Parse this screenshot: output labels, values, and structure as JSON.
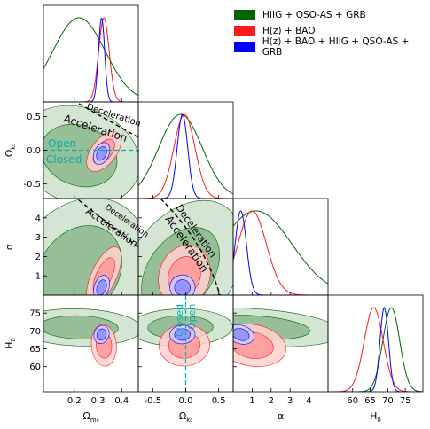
{
  "chart_data": {
    "type": "triangle",
    "parameters": [
      {
        "key": "Om",
        "label": "Ω",
        "sub": "m₀",
        "range": [
          0.07,
          0.47
        ],
        "ticks": [
          0.2,
          0.3,
          0.4
        ]
      },
      {
        "key": "Ok",
        "label": "Ω",
        "sub": "k₀",
        "range": [
          -0.72,
          0.72
        ],
        "ticks": [
          -0.5,
          0.0,
          0.5
        ]
      },
      {
        "key": "alpha",
        "label": "α",
        "sub": "",
        "range": [
          0.0,
          5.0
        ],
        "ticks": [
          1,
          2,
          3,
          4
        ]
      },
      {
        "key": "H0",
        "label": "H",
        "sub": "0",
        "range": [
          53,
          80
        ],
        "ticks": [
          60,
          65,
          70,
          75
        ]
      }
    ],
    "series": [
      {
        "name": "HIIG + QSO-AS + GRB",
        "color": "#006400",
        "mean": {
          "Om": 0.22,
          "Ok": -0.08,
          "alpha": 1.2,
          "H0": 71.0
        },
        "sigma": {
          "Om": 0.11,
          "Ok": 0.33,
          "alpha": 1.9,
          "H0": 2.4
        }
      },
      {
        "name": "H(z) + BAO",
        "color": "#ff1a1a",
        "mean": {
          "Om": 0.325,
          "Ok": -0.02,
          "alpha": 1.0,
          "H0": 66.0
        },
        "sigma": {
          "Om": 0.022,
          "Ok": 0.16,
          "alpha": 0.75,
          "H0": 2.7
        }
      },
      {
        "name": "H(z) + BAO + HIIG + QSO-AS + GRB",
        "color": "#0000ff",
        "mean": {
          "Om": 0.315,
          "Ok": -0.05,
          "alpha": 0.4,
          "H0": 69.0
        },
        "sigma": {
          "Om": 0.013,
          "Ok": 0.08,
          "alpha": 0.3,
          "H0": 1.2
        }
      }
    ],
    "annotations": {
      "deceleration": "Deceleration",
      "acceleration": "Acceleration",
      "open": "Open",
      "closed": "Closed"
    }
  }
}
